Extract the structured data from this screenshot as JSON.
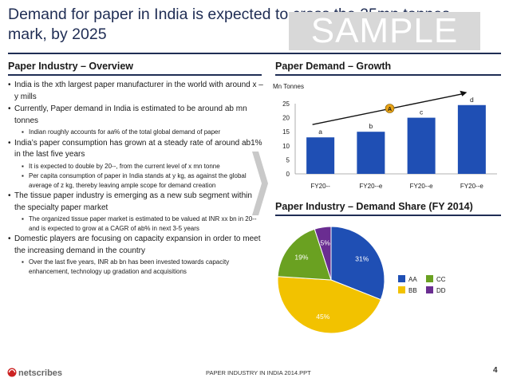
{
  "header": {
    "title": "Demand for paper in India is expected to cross the 25mn tonnes mark, by 2025",
    "watermark": "SAMPLE"
  },
  "overview": {
    "title": "Paper Industry – Overview",
    "bullets": [
      {
        "text": "India is the xth largest paper manufacturer in the world with around x – y mills",
        "subs": []
      },
      {
        "text": "Currently, Paper demand in India is estimated to be around ab mn tonnes",
        "subs": [
          "Indian roughly accounts for aa% of the total global demand of paper"
        ]
      },
      {
        "text": "India’s paper consumption has grown at a steady rate of around ab1% in the last five years",
        "subs": [
          "It is expected to double by 20--, from the current level of x mn tonne",
          "Per capita consumption of paper in India stands at y kg, as against the global average of z kg, thereby leaving ample scope for demand creation"
        ]
      },
      {
        "text": "The tissue paper industry is emerging as a new sub segment within the specialty paper market",
        "subs": [
          "The organized tissue paper market is estimated to be valued at INR xx bn in 20-- and is expected to grow at a CAGR of ab% in next 3-5 years"
        ]
      },
      {
        "text": "Domestic players are focusing on capacity expansion in order to meet the increasing demand in the country",
        "subs": [
          "Over the last five years, INR ab bn has been invested towards capacity enhancement, technology up gradation and acquisitions"
        ]
      }
    ]
  },
  "growth": {
    "title": "Paper Demand – Growth"
  },
  "share": {
    "title": "Paper Industry – Demand Share (FY 2014)"
  },
  "footer": {
    "logo": "netscribes",
    "text": "PAPER INDUSTRY IN INDIA 2014.PPT",
    "page": "4"
  },
  "colors": {
    "navy": "#1f2d54",
    "bar_blue": "#1f4fb4",
    "gold": "#f2c200",
    "green": "#6aa121",
    "purple": "#6a2d91",
    "orange": "#e8a317",
    "red": "#cc2222"
  },
  "chart_data": [
    {
      "type": "bar",
      "ylabel": "Mn Tonnes",
      "categories": [
        "FY20--",
        "FY20--e",
        "FY20--e",
        "FY20--e"
      ],
      "values": [
        13,
        15,
        20,
        24.5
      ],
      "data_labels": [
        "a",
        "b",
        "c",
        "d"
      ],
      "ylim": [
        0,
        25
      ],
      "yticks": [
        0,
        5,
        10,
        15,
        20,
        25
      ],
      "trend_marker": "A"
    },
    {
      "type": "pie",
      "title": "Paper Industry – Demand Share (FY 2014)",
      "labels": [
        "AA",
        "BB",
        "CC",
        "DD"
      ],
      "values": [
        31,
        45,
        19,
        5
      ],
      "value_labels": [
        "31%",
        "45%",
        "19%",
        "5%"
      ],
      "colors": [
        "#1f4fb4",
        "#f2c200",
        "#6aa121",
        "#6a2d91"
      ],
      "legend": "right"
    }
  ]
}
